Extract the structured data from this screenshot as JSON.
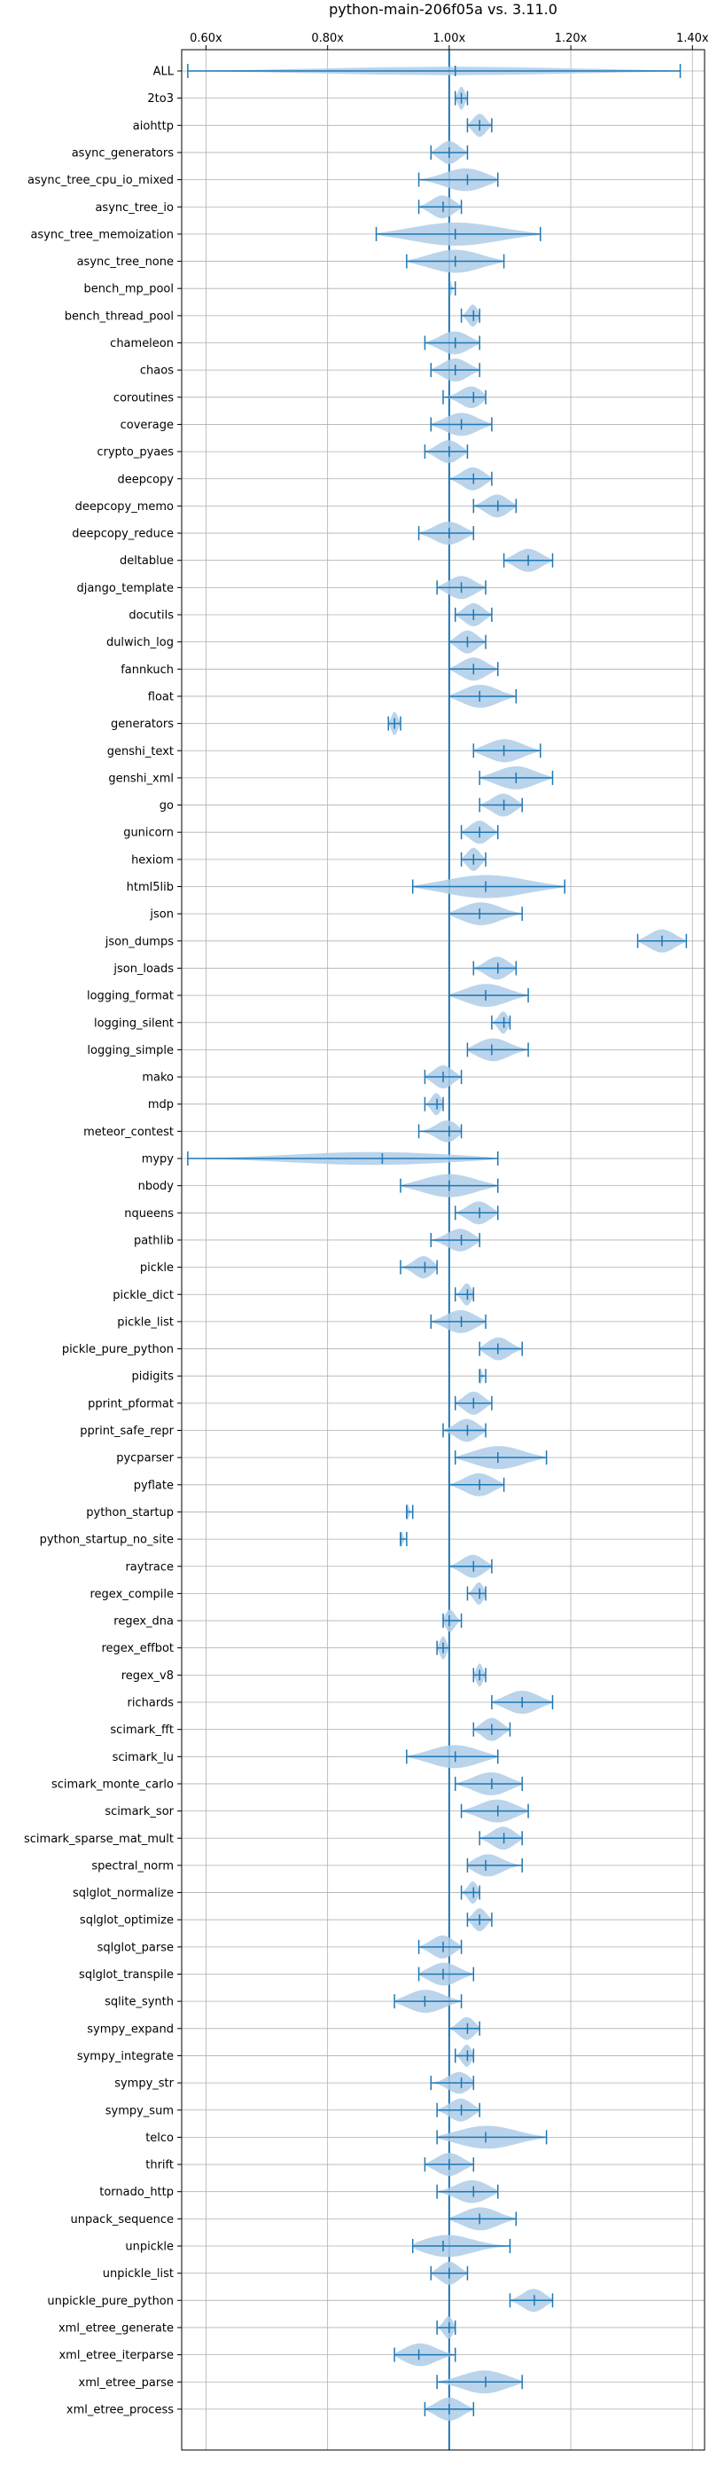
{
  "chart_data": {
    "type": "violin",
    "title": "python-main-206f05a vs. 3.11.0",
    "xlabel": "",
    "ylabel": "",
    "xlim": [
      0.56,
      1.42
    ],
    "xticks": [
      0.6,
      0.8,
      1.0,
      1.2,
      1.4
    ],
    "xtick_labels": [
      "0.60x",
      "0.80x",
      "1.00x",
      "1.20x",
      "1.40x"
    ],
    "xaxis_position": "top",
    "grid": true,
    "reference_line": 1.0,
    "colors": {
      "violin": "#aecde8",
      "whisker": "#1f77b4"
    },
    "benchmarks": [
      {
        "name": "ALL",
        "min": 0.57,
        "max": 1.38,
        "mean": 1.01
      },
      {
        "name": "2to3",
        "min": 1.01,
        "max": 1.03,
        "mean": 1.02
      },
      {
        "name": "aiohttp",
        "min": 1.03,
        "max": 1.07,
        "mean": 1.05
      },
      {
        "name": "async_generators",
        "min": 0.97,
        "max": 1.03,
        "mean": 1.0
      },
      {
        "name": "async_tree_cpu_io_mixed",
        "min": 0.95,
        "max": 1.08,
        "mean": 1.03
      },
      {
        "name": "async_tree_io",
        "min": 0.95,
        "max": 1.02,
        "mean": 0.99
      },
      {
        "name": "async_tree_memoization",
        "min": 0.88,
        "max": 1.15,
        "mean": 1.01
      },
      {
        "name": "async_tree_none",
        "min": 0.93,
        "max": 1.09,
        "mean": 1.01
      },
      {
        "name": "bench_mp_pool",
        "min": 1.0,
        "max": 1.01,
        "mean": 1.0
      },
      {
        "name": "bench_thread_pool",
        "min": 1.02,
        "max": 1.05,
        "mean": 1.04
      },
      {
        "name": "chameleon",
        "min": 0.96,
        "max": 1.05,
        "mean": 1.01
      },
      {
        "name": "chaos",
        "min": 0.97,
        "max": 1.05,
        "mean": 1.01
      },
      {
        "name": "coroutines",
        "min": 0.99,
        "max": 1.06,
        "mean": 1.04
      },
      {
        "name": "coverage",
        "min": 0.97,
        "max": 1.07,
        "mean": 1.02
      },
      {
        "name": "crypto_pyaes",
        "min": 0.96,
        "max": 1.03,
        "mean": 1.0
      },
      {
        "name": "deepcopy",
        "min": 1.0,
        "max": 1.07,
        "mean": 1.04
      },
      {
        "name": "deepcopy_memo",
        "min": 1.04,
        "max": 1.11,
        "mean": 1.08
      },
      {
        "name": "deepcopy_reduce",
        "min": 0.95,
        "max": 1.04,
        "mean": 1.0
      },
      {
        "name": "deltablue",
        "min": 1.09,
        "max": 1.17,
        "mean": 1.13
      },
      {
        "name": "django_template",
        "min": 0.98,
        "max": 1.06,
        "mean": 1.02
      },
      {
        "name": "docutils",
        "min": 1.01,
        "max": 1.07,
        "mean": 1.04
      },
      {
        "name": "dulwich_log",
        "min": 1.0,
        "max": 1.06,
        "mean": 1.03
      },
      {
        "name": "fannkuch",
        "min": 1.0,
        "max": 1.08,
        "mean": 1.04
      },
      {
        "name": "float",
        "min": 1.0,
        "max": 1.11,
        "mean": 1.05
      },
      {
        "name": "generators",
        "min": 0.9,
        "max": 0.92,
        "mean": 0.91
      },
      {
        "name": "genshi_text",
        "min": 1.04,
        "max": 1.15,
        "mean": 1.09
      },
      {
        "name": "genshi_xml",
        "min": 1.05,
        "max": 1.17,
        "mean": 1.11
      },
      {
        "name": "go",
        "min": 1.05,
        "max": 1.12,
        "mean": 1.09
      },
      {
        "name": "gunicorn",
        "min": 1.02,
        "max": 1.08,
        "mean": 1.05
      },
      {
        "name": "hexiom",
        "min": 1.02,
        "max": 1.06,
        "mean": 1.04
      },
      {
        "name": "html5lib",
        "min": 0.94,
        "max": 1.19,
        "mean": 1.06
      },
      {
        "name": "json",
        "min": 1.0,
        "max": 1.12,
        "mean": 1.05
      },
      {
        "name": "json_dumps",
        "min": 1.31,
        "max": 1.39,
        "mean": 1.35
      },
      {
        "name": "json_loads",
        "min": 1.04,
        "max": 1.11,
        "mean": 1.08
      },
      {
        "name": "logging_format",
        "min": 1.0,
        "max": 1.13,
        "mean": 1.06
      },
      {
        "name": "logging_silent",
        "min": 1.07,
        "max": 1.1,
        "mean": 1.09
      },
      {
        "name": "logging_simple",
        "min": 1.03,
        "max": 1.13,
        "mean": 1.07
      },
      {
        "name": "mako",
        "min": 0.96,
        "max": 1.02,
        "mean": 0.99
      },
      {
        "name": "mdp",
        "min": 0.96,
        "max": 0.99,
        "mean": 0.98
      },
      {
        "name": "meteor_contest",
        "min": 0.95,
        "max": 1.02,
        "mean": 1.0
      },
      {
        "name": "mypy",
        "min": 0.57,
        "max": 1.08,
        "mean": 0.89
      },
      {
        "name": "nbody",
        "min": 0.92,
        "max": 1.08,
        "mean": 1.0
      },
      {
        "name": "nqueens",
        "min": 1.01,
        "max": 1.08,
        "mean": 1.05
      },
      {
        "name": "pathlib",
        "min": 0.97,
        "max": 1.05,
        "mean": 1.02
      },
      {
        "name": "pickle",
        "min": 0.92,
        "max": 0.98,
        "mean": 0.96
      },
      {
        "name": "pickle_dict",
        "min": 1.01,
        "max": 1.04,
        "mean": 1.03
      },
      {
        "name": "pickle_list",
        "min": 0.97,
        "max": 1.06,
        "mean": 1.02
      },
      {
        "name": "pickle_pure_python",
        "min": 1.05,
        "max": 1.12,
        "mean": 1.08
      },
      {
        "name": "pidigits",
        "min": 1.05,
        "max": 1.06,
        "mean": 1.05
      },
      {
        "name": "pprint_pformat",
        "min": 1.01,
        "max": 1.07,
        "mean": 1.04
      },
      {
        "name": "pprint_safe_repr",
        "min": 0.99,
        "max": 1.06,
        "mean": 1.03
      },
      {
        "name": "pycparser",
        "min": 1.01,
        "max": 1.16,
        "mean": 1.08
      },
      {
        "name": "pyflate",
        "min": 1.0,
        "max": 1.09,
        "mean": 1.05
      },
      {
        "name": "python_startup",
        "min": 0.93,
        "max": 0.94,
        "mean": 0.93
      },
      {
        "name": "python_startup_no_site",
        "min": 0.92,
        "max": 0.93,
        "mean": 0.92
      },
      {
        "name": "raytrace",
        "min": 1.0,
        "max": 1.07,
        "mean": 1.04
      },
      {
        "name": "regex_compile",
        "min": 1.03,
        "max": 1.06,
        "mean": 1.05
      },
      {
        "name": "regex_dna",
        "min": 0.99,
        "max": 1.02,
        "mean": 1.0
      },
      {
        "name": "regex_effbot",
        "min": 0.98,
        "max": 1.0,
        "mean": 0.99
      },
      {
        "name": "regex_v8",
        "min": 1.04,
        "max": 1.06,
        "mean": 1.05
      },
      {
        "name": "richards",
        "min": 1.07,
        "max": 1.17,
        "mean": 1.12
      },
      {
        "name": "scimark_fft",
        "min": 1.04,
        "max": 1.1,
        "mean": 1.07
      },
      {
        "name": "scimark_lu",
        "min": 0.93,
        "max": 1.08,
        "mean": 1.01
      },
      {
        "name": "scimark_monte_carlo",
        "min": 1.01,
        "max": 1.12,
        "mean": 1.07
      },
      {
        "name": "scimark_sor",
        "min": 1.02,
        "max": 1.13,
        "mean": 1.08
      },
      {
        "name": "scimark_sparse_mat_mult",
        "min": 1.05,
        "max": 1.12,
        "mean": 1.09
      },
      {
        "name": "spectral_norm",
        "min": 1.03,
        "max": 1.12,
        "mean": 1.06
      },
      {
        "name": "sqlglot_normalize",
        "min": 1.02,
        "max": 1.05,
        "mean": 1.04
      },
      {
        "name": "sqlglot_optimize",
        "min": 1.03,
        "max": 1.07,
        "mean": 1.05
      },
      {
        "name": "sqlglot_parse",
        "min": 0.95,
        "max": 1.02,
        "mean": 0.99
      },
      {
        "name": "sqlglot_transpile",
        "min": 0.95,
        "max": 1.04,
        "mean": 0.99
      },
      {
        "name": "sqlite_synth",
        "min": 0.91,
        "max": 1.02,
        "mean": 0.96
      },
      {
        "name": "sympy_expand",
        "min": 1.0,
        "max": 1.05,
        "mean": 1.03
      },
      {
        "name": "sympy_integrate",
        "min": 1.01,
        "max": 1.04,
        "mean": 1.03
      },
      {
        "name": "sympy_str",
        "min": 0.97,
        "max": 1.04,
        "mean": 1.02
      },
      {
        "name": "sympy_sum",
        "min": 0.98,
        "max": 1.05,
        "mean": 1.02
      },
      {
        "name": "telco",
        "min": 0.98,
        "max": 1.16,
        "mean": 1.06
      },
      {
        "name": "thrift",
        "min": 0.96,
        "max": 1.04,
        "mean": 1.0
      },
      {
        "name": "tornado_http",
        "min": 0.98,
        "max": 1.08,
        "mean": 1.04
      },
      {
        "name": "unpack_sequence",
        "min": 1.0,
        "max": 1.11,
        "mean": 1.05
      },
      {
        "name": "unpickle",
        "min": 0.94,
        "max": 1.1,
        "mean": 0.99
      },
      {
        "name": "unpickle_list",
        "min": 0.97,
        "max": 1.03,
        "mean": 1.0
      },
      {
        "name": "unpickle_pure_python",
        "min": 1.1,
        "max": 1.17,
        "mean": 1.14
      },
      {
        "name": "xml_etree_generate",
        "min": 0.98,
        "max": 1.01,
        "mean": 1.0
      },
      {
        "name": "xml_etree_iterparse",
        "min": 0.91,
        "max": 1.01,
        "mean": 0.95
      },
      {
        "name": "xml_etree_parse",
        "min": 0.98,
        "max": 1.12,
        "mean": 1.06
      },
      {
        "name": "xml_etree_process",
        "min": 0.96,
        "max": 1.04,
        "mean": 1.0
      }
    ]
  }
}
